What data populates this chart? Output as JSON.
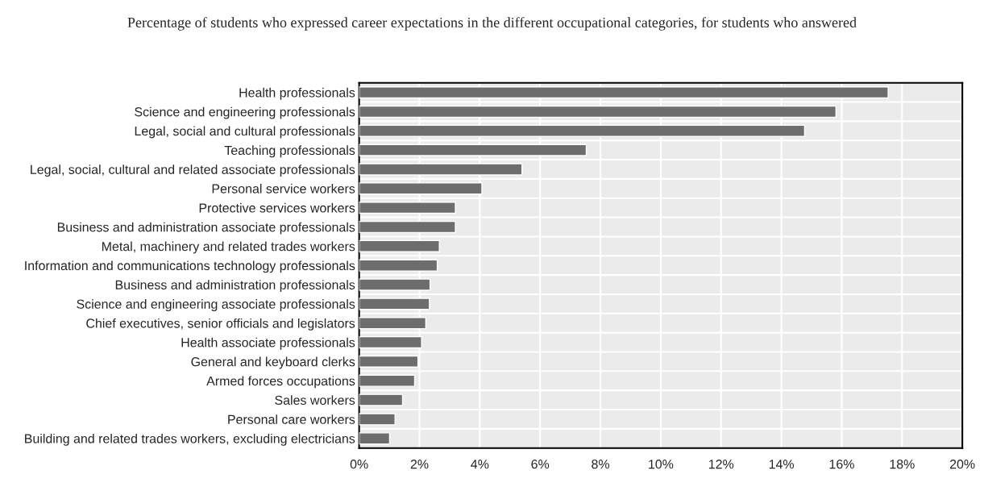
{
  "chart_data": {
    "type": "bar",
    "orientation": "horizontal",
    "title": "Percentage of students who expressed career expectations in the different occupational categories, for students who answered",
    "categories": [
      "Health professionals",
      "Science and engineering professionals",
      "Legal, social and cultural professionals",
      "Teaching professionals",
      "Legal, social, cultural and related associate professionals",
      "Personal service workers",
      "Protective services workers",
      "Business and administration associate professionals",
      "Metal, machinery and related trades workers",
      "Information and communications technology professionals",
      "Business and administration professionals",
      "Science and engineering associate professionals",
      "Chief executives, senior officials and legislators",
      "Health associate professionals",
      "General and keyboard clerks",
      "Armed forces occupations",
      "Sales workers",
      "Personal care workers",
      "Building and related trades workers, excluding electricians"
    ],
    "values": [
      17.54,
      15.81,
      14.77,
      7.53,
      5.4,
      4.07,
      3.19,
      3.19,
      2.66,
      2.59,
      2.35,
      2.33,
      2.21,
      2.07,
      1.95,
      1.84,
      1.44,
      1.19,
      1.01
    ],
    "color": "#6d6d6d",
    "xlim": [
      0,
      20
    ],
    "xticks": [
      {
        "value": 0,
        "label": "0%"
      },
      {
        "value": 2,
        "label": "2%"
      },
      {
        "value": 4,
        "label": "4%"
      },
      {
        "value": 6,
        "label": "6%"
      },
      {
        "value": 8,
        "label": "8%"
      },
      {
        "value": 10,
        "label": "10%"
      },
      {
        "value": 12,
        "label": "12%"
      },
      {
        "value": 14,
        "label": "14%"
      },
      {
        "value": 16,
        "label": "16%"
      },
      {
        "value": 18,
        "label": "18%"
      },
      {
        "value": 20,
        "label": "20%"
      }
    ],
    "grid": true
  }
}
